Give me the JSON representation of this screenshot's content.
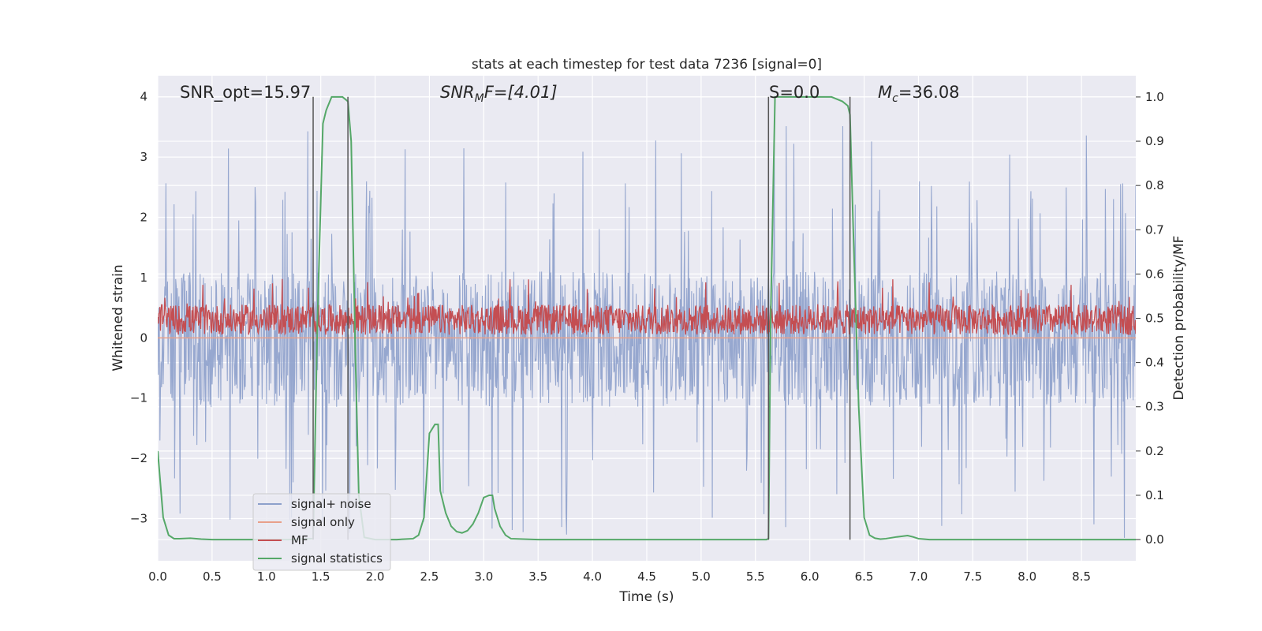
{
  "chart_data": {
    "type": "line",
    "title": "stats at each timestep for test data 7236 [signal=0]",
    "xlabel": "Time (s)",
    "ylabel_left": "Whitened strain",
    "ylabel_right": "Detection probability/MF",
    "xlim": [
      0,
      9.0
    ],
    "ylim_left": [
      -3.7,
      4.35
    ],
    "ylim_right": [
      -0.048,
      1.048
    ],
    "x_ticks": [
      0.0,
      0.5,
      1.0,
      1.5,
      2.0,
      2.5,
      3.0,
      3.5,
      4.0,
      4.5,
      5.0,
      5.5,
      6.0,
      6.5,
      7.0,
      7.5,
      8.0,
      8.5
    ],
    "x_tick_labels": [
      "0.0",
      "0.5",
      "1.0",
      "1.5",
      "2.0",
      "2.5",
      "3.0",
      "3.5",
      "4.0",
      "4.5",
      "5.0",
      "5.5",
      "6.0",
      "6.5",
      "7.0",
      "7.5",
      "8.0",
      "8.5"
    ],
    "y_left_ticks": [
      4,
      3,
      2,
      1,
      0,
      -1,
      -2,
      -3
    ],
    "y_left_tick_labels": [
      "4",
      "3",
      "2",
      "1",
      "0",
      "−1",
      "−2",
      "−3"
    ],
    "y_right_ticks": [
      1.0,
      0.9,
      0.8,
      0.7,
      0.6,
      0.5,
      0.4,
      0.3,
      0.2,
      0.1,
      0.0
    ],
    "y_right_tick_labels": [
      "1.0",
      "0.9",
      "0.8",
      "0.7",
      "0.6",
      "0.5",
      "0.4",
      "0.3",
      "0.2",
      "0.1",
      "0.0"
    ],
    "grid": true,
    "legend_position": "lower-left",
    "annotations": {
      "snr_opt": "SNR_opt=15.97",
      "snr_mf_main": "SNR",
      "snr_mf_sub": "M",
      "snr_mf_rest": "F=[4.01]",
      "s_label": "S=0.0",
      "mc_main": "M",
      "mc_sub": "c",
      "mc_rest": "=36.08"
    },
    "vertical_lines": {
      "x": [
        1.43,
        1.75,
        5.62,
        6.37
      ],
      "ymin": -3.35,
      "ymax": 4.0,
      "color": "#555555"
    },
    "series": [
      {
        "name": "signal+ noise",
        "color": "#8da0cb",
        "axis": "left",
        "kind": "noise",
        "samples": 1800,
        "core_range": [
          -1.15,
          1.1
        ],
        "typical_peak": 2.6,
        "max_peak": 3.55,
        "min_peak": -3.35
      },
      {
        "name": "signal only",
        "color": "#e8a08a",
        "axis": "left",
        "kind": "constant",
        "value": 0.0
      },
      {
        "name": "MF",
        "color": "#c44e52",
        "axis": "left",
        "kind": "noise",
        "samples": 1800,
        "baseline": 0.3,
        "low": 0.05,
        "typical_high": 0.55,
        "max_peak": 1.0
      },
      {
        "name": "signal statistics",
        "color": "#55a868",
        "axis": "right",
        "kind": "line",
        "x": [
          0.0,
          0.05,
          0.1,
          0.15,
          0.2,
          0.3,
          0.4,
          0.5,
          0.8,
          1.2,
          1.4,
          1.43,
          1.47,
          1.52,
          1.55,
          1.6,
          1.7,
          1.75,
          1.78,
          1.82,
          1.85,
          1.9,
          2.0,
          2.2,
          2.35,
          2.4,
          2.45,
          2.5,
          2.55,
          2.58,
          2.6,
          2.65,
          2.7,
          2.75,
          2.8,
          2.85,
          2.9,
          2.95,
          3.0,
          3.05,
          3.08,
          3.1,
          3.15,
          3.2,
          3.25,
          3.5,
          4.0,
          4.5,
          5.0,
          5.5,
          5.6,
          5.62,
          5.64,
          5.68,
          5.75,
          5.8,
          6.0,
          6.2,
          6.3,
          6.35,
          6.37,
          6.4,
          6.45,
          6.5,
          6.55,
          6.6,
          6.65,
          6.7,
          6.8,
          6.9,
          6.95,
          7.0,
          7.05,
          7.1,
          7.5,
          8.0,
          8.5,
          9.0
        ],
        "y": [
          0.2,
          0.05,
          0.01,
          0.002,
          0.002,
          0.003,
          0.001,
          0.0,
          0.0,
          0.0,
          0.002,
          0.003,
          0.5,
          0.94,
          0.97,
          1.0,
          1.0,
          0.99,
          0.9,
          0.4,
          0.1,
          0.005,
          0.0,
          0.0,
          0.002,
          0.01,
          0.05,
          0.24,
          0.26,
          0.26,
          0.11,
          0.06,
          0.03,
          0.018,
          0.015,
          0.02,
          0.035,
          0.06,
          0.095,
          0.1,
          0.1,
          0.07,
          0.03,
          0.01,
          0.002,
          0.0,
          0.0,
          0.0,
          0.0,
          0.0,
          0.0,
          0.002,
          0.5,
          1.0,
          1.0,
          1.0,
          1.0,
          1.0,
          0.99,
          0.98,
          0.96,
          0.7,
          0.3,
          0.05,
          0.01,
          0.003,
          0.001,
          0.002,
          0.006,
          0.009,
          0.006,
          0.002,
          0.001,
          0.0,
          0.0,
          0.0,
          0.0,
          0.0
        ]
      }
    ]
  }
}
